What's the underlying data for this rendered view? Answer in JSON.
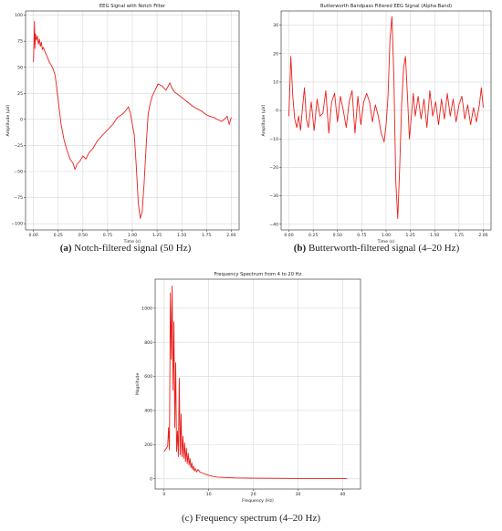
{
  "chart_data": [
    {
      "type": "line",
      "title": "EEG Signal with Notch Filter",
      "xlabel": "Time (s)",
      "ylabel": "Amplitude (µV)",
      "xlim": [
        -0.08,
        2.08
      ],
      "ylim": [
        -106,
        104
      ],
      "xticks": [
        "0.00",
        "0.25",
        "0.50",
        "0.75",
        "1.00",
        "1.25",
        "1.50",
        "1.75",
        "2.00"
      ],
      "yticks": [
        "100",
        "75",
        "50",
        "25",
        "0",
        "−25",
        "−50",
        "−75",
        "−100"
      ],
      "grid": true,
      "caption_letter": "(a)",
      "caption_text": " Notch-filtered signal (50 Hz)",
      "series": [
        {
          "color": "#e8201c",
          "x": [
            0.0,
            0.01,
            0.015,
            0.02,
            0.03,
            0.04,
            0.05,
            0.06,
            0.07,
            0.08,
            0.09,
            0.1,
            0.12,
            0.14,
            0.16,
            0.18,
            0.2,
            0.22,
            0.25,
            0.28,
            0.31,
            0.34,
            0.37,
            0.4,
            0.42,
            0.44,
            0.47,
            0.5,
            0.53,
            0.56,
            0.6,
            0.65,
            0.7,
            0.75,
            0.8,
            0.85,
            0.9,
            0.93,
            0.96,
            0.98,
            1.0,
            1.02,
            1.04,
            1.06,
            1.08,
            1.1,
            1.12,
            1.14,
            1.16,
            1.18,
            1.2,
            1.23,
            1.26,
            1.3,
            1.34,
            1.38,
            1.4,
            1.43,
            1.46,
            1.5,
            1.54,
            1.58,
            1.62,
            1.66,
            1.7,
            1.74,
            1.78,
            1.82,
            1.86,
            1.9,
            1.93,
            1.96,
            1.98,
            2.0
          ],
          "y": [
            55,
            94,
            68,
            82,
            76,
            80,
            72,
            77,
            70,
            74,
            67,
            69,
            64,
            60,
            55,
            52,
            48,
            42,
            18,
            -5,
            -20,
            -30,
            -38,
            -42,
            -48,
            -43,
            -40,
            -35,
            -38,
            -32,
            -28,
            -20,
            -15,
            -10,
            -5,
            2,
            5,
            8,
            12,
            6,
            -5,
            -15,
            -45,
            -80,
            -95,
            -88,
            -60,
            -25,
            5,
            15,
            22,
            28,
            34,
            32,
            28,
            35,
            30,
            26,
            24,
            21,
            18,
            15,
            12,
            10,
            8,
            5,
            3,
            2,
            0,
            -2,
            0,
            3,
            -5,
            2
          ]
        }
      ]
    },
    {
      "type": "line",
      "title": "Butterworth Bandpass Filtered EEG Signal (Alpha Band)",
      "xlabel": "Time (s)",
      "ylabel": "Amplitude (µV)",
      "xlim": [
        -0.08,
        2.08
      ],
      "ylim": [
        -42,
        35
      ],
      "xticks": [
        "0.00",
        "0.25",
        "0.50",
        "0.75",
        "1.00",
        "1.25",
        "1.50",
        "1.75",
        "2.00"
      ],
      "yticks": [
        "30",
        "20",
        "10",
        "0",
        "−10",
        "−20",
        "−30",
        "−40"
      ],
      "grid": true,
      "caption_letter": "(b)",
      "caption_text": " Butterworth-filtered signal (4–20 Hz)",
      "series": [
        {
          "color": "#e8201c",
          "x": [
            0.0,
            0.02,
            0.04,
            0.06,
            0.08,
            0.1,
            0.12,
            0.14,
            0.16,
            0.18,
            0.2,
            0.23,
            0.26,
            0.29,
            0.32,
            0.35,
            0.38,
            0.41,
            0.44,
            0.47,
            0.5,
            0.53,
            0.56,
            0.59,
            0.62,
            0.65,
            0.68,
            0.71,
            0.74,
            0.77,
            0.8,
            0.83,
            0.86,
            0.89,
            0.92,
            0.95,
            0.98,
            1.0,
            1.02,
            1.04,
            1.06,
            1.08,
            1.1,
            1.12,
            1.14,
            1.16,
            1.18,
            1.2,
            1.22,
            1.24,
            1.26,
            1.28,
            1.3,
            1.33,
            1.36,
            1.39,
            1.42,
            1.45,
            1.48,
            1.51,
            1.54,
            1.57,
            1.6,
            1.63,
            1.66,
            1.69,
            1.72,
            1.75,
            1.78,
            1.81,
            1.84,
            1.87,
            1.9,
            1.93,
            1.96,
            1.98,
            2.0
          ],
          "y": [
            -2,
            19,
            5,
            -3,
            -6,
            -2,
            -7,
            1,
            8,
            -3,
            -6,
            3,
            -7,
            4,
            -2,
            -1,
            7,
            -8,
            3,
            6,
            -4,
            5,
            0,
            -6,
            3,
            7,
            -8,
            5,
            -5,
            3,
            6,
            3,
            -4,
            2,
            -2,
            -8,
            -11,
            -5,
            5,
            25,
            33,
            12,
            -25,
            -38,
            -20,
            2,
            15,
            19,
            5,
            -10,
            -2,
            6,
            -2,
            5,
            -3,
            4,
            -6,
            7,
            -2,
            3,
            -5,
            4,
            -3,
            6,
            -2,
            4,
            -4,
            2,
            5,
            -3,
            2,
            -5,
            1,
            -4,
            2,
            8,
            1
          ]
        }
      ]
    },
    {
      "type": "line",
      "title": "Frequency Spectrum from 4 to 20 Hz",
      "xlabel": "Frequency (Hz)",
      "ylabel": "Magnitude",
      "xlim": [
        -2,
        44
      ],
      "ylim": [
        -60,
        1170
      ],
      "xticks": [
        "0",
        "10",
        "20",
        "30",
        "40"
      ],
      "yticks": [
        "1000",
        "800",
        "600",
        "400",
        "200",
        "0"
      ],
      "grid": true,
      "caption_letter": "",
      "caption_text": "(c) Frequency spectrum (4–20 Hz)",
      "series": [
        {
          "color": "#e8201c",
          "x": [
            0.0,
            0.4,
            0.8,
            1.0,
            1.2,
            1.4,
            1.6,
            1.8,
            2.0,
            2.2,
            2.4,
            2.6,
            2.8,
            3.0,
            3.2,
            3.4,
            3.6,
            3.8,
            4.0,
            4.2,
            4.4,
            4.6,
            4.8,
            5.0,
            5.2,
            5.4,
            5.6,
            5.8,
            6.0,
            6.2,
            6.4,
            6.6,
            6.8,
            7.0,
            7.3,
            7.6,
            8.0,
            8.5,
            9.0,
            10.0,
            11.0,
            12.0,
            14.0,
            16.0,
            20.0,
            25.0,
            30.0,
            35.0,
            41.0
          ],
          "y": [
            160,
            175,
            190,
            300,
            170,
            1090,
            700,
            1130,
            520,
            920,
            300,
            680,
            160,
            280,
            130,
            590,
            140,
            380,
            130,
            250,
            120,
            210,
            100,
            180,
            90,
            150,
            80,
            120,
            65,
            95,
            55,
            75,
            45,
            60,
            40,
            55,
            40,
            35,
            30,
            20,
            14,
            10,
            7,
            5,
            4,
            3,
            2,
            2,
            1
          ]
        }
      ]
    }
  ]
}
